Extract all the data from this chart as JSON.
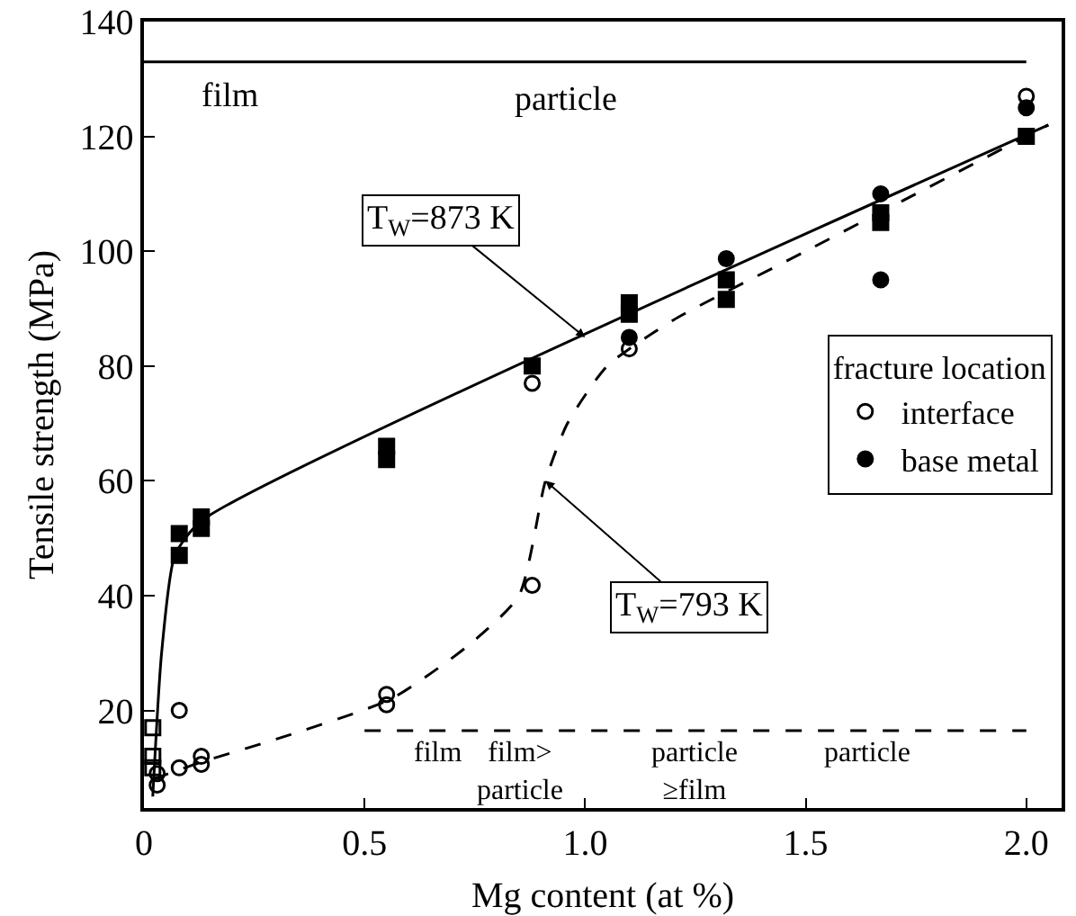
{
  "chart_data": {
    "type": "scatter",
    "xlabel": "Mg content (at %)",
    "ylabel": "Tensile strength (MPa)",
    "legend_title": "fracture location",
    "legend": "right",
    "grid": false,
    "xlim": [
      0,
      2.08
    ],
    "xticks": [
      {
        "value": 0,
        "label": "0"
      },
      0.5,
      {
        "value": 1,
        "label": "1.0"
      },
      1.5,
      {
        "value": 2,
        "label": "2.0"
      }
    ],
    "ylim": [
      3,
      140
    ],
    "yticks": [
      20,
      40,
      60,
      80,
      100,
      120,
      140
    ],
    "series": [
      {
        "type": "line",
        "color": "#000000",
        "line_style": "solid",
        "marker": "none",
        "x": [
          0.02,
          0.04,
          0.07,
          0.13,
          2.05
        ],
        "values": [
          5,
          30,
          47,
          53,
          122
        ]
      },
      {
        "type": "line",
        "color": "#000000",
        "line_style": "dashed",
        "marker": "none",
        "x": [
          0.02,
          0.13,
          0.3,
          0.56,
          0.73,
          0.85,
          0.91,
          0.96,
          1.05,
          1.2,
          1.5,
          2.05
        ],
        "values": [
          8,
          11,
          15,
          22,
          31,
          40,
          60,
          70,
          80,
          88,
          100,
          122
        ]
      },
      {
        "type": "line",
        "color": "#000000",
        "line_style": "solid",
        "marker": "none",
        "x": [
          0,
          2.0
        ],
        "values": [
          133,
          133
        ]
      },
      {
        "type": "line",
        "color": "#000000",
        "line_style": "dashed",
        "marker": "none",
        "x": [
          0.5,
          2.0
        ],
        "values": [
          16.5,
          16.5
        ]
      },
      {
        "name": "interface",
        "color": "#000000",
        "marker": "circle-open",
        "x": [
          0.03,
          0.03,
          0.08,
          0.08,
          0.13,
          0.13,
          0.55,
          0.55,
          0.88,
          0.88,
          1.1,
          2.0
        ],
        "values": [
          9,
          7,
          20,
          10,
          12,
          10.6,
          22.8,
          21,
          41.8,
          77,
          83,
          127
        ]
      },
      {
        "color": "#000000",
        "marker": "square-open",
        "x": [
          0.02,
          0.02,
          0.02
        ],
        "values": [
          17,
          12,
          10
        ]
      },
      {
        "name": "base metal",
        "color": "#000000",
        "marker": "circle",
        "x": [
          1.1,
          1.32,
          1.67,
          1.67,
          2.0
        ],
        "values": [
          85,
          98.7,
          110,
          95,
          125
        ]
      },
      {
        "color": "#000000",
        "marker": "square",
        "x": [
          0.08,
          0.08,
          0.13,
          0.13,
          0.55,
          0.55,
          0.88,
          1.1,
          1.1,
          1.32,
          1.32,
          1.67,
          1.67,
          2.0
        ],
        "values": [
          50.8,
          47,
          53.7,
          51.7,
          66,
          63.7,
          80,
          91,
          89,
          95,
          91.6,
          106.7,
          105,
          120
        ]
      }
    ],
    "annotations": [
      {
        "text": "T$_{W}$=873 K",
        "x": 1.0,
        "y": 85
      },
      {
        "text": "T$_{W}$=793 K",
        "x": 0.91,
        "y": 60
      },
      "film",
      "particle",
      "film",
      "film>\nparticle",
      "particle\n≥film",
      "particle"
    ]
  }
}
